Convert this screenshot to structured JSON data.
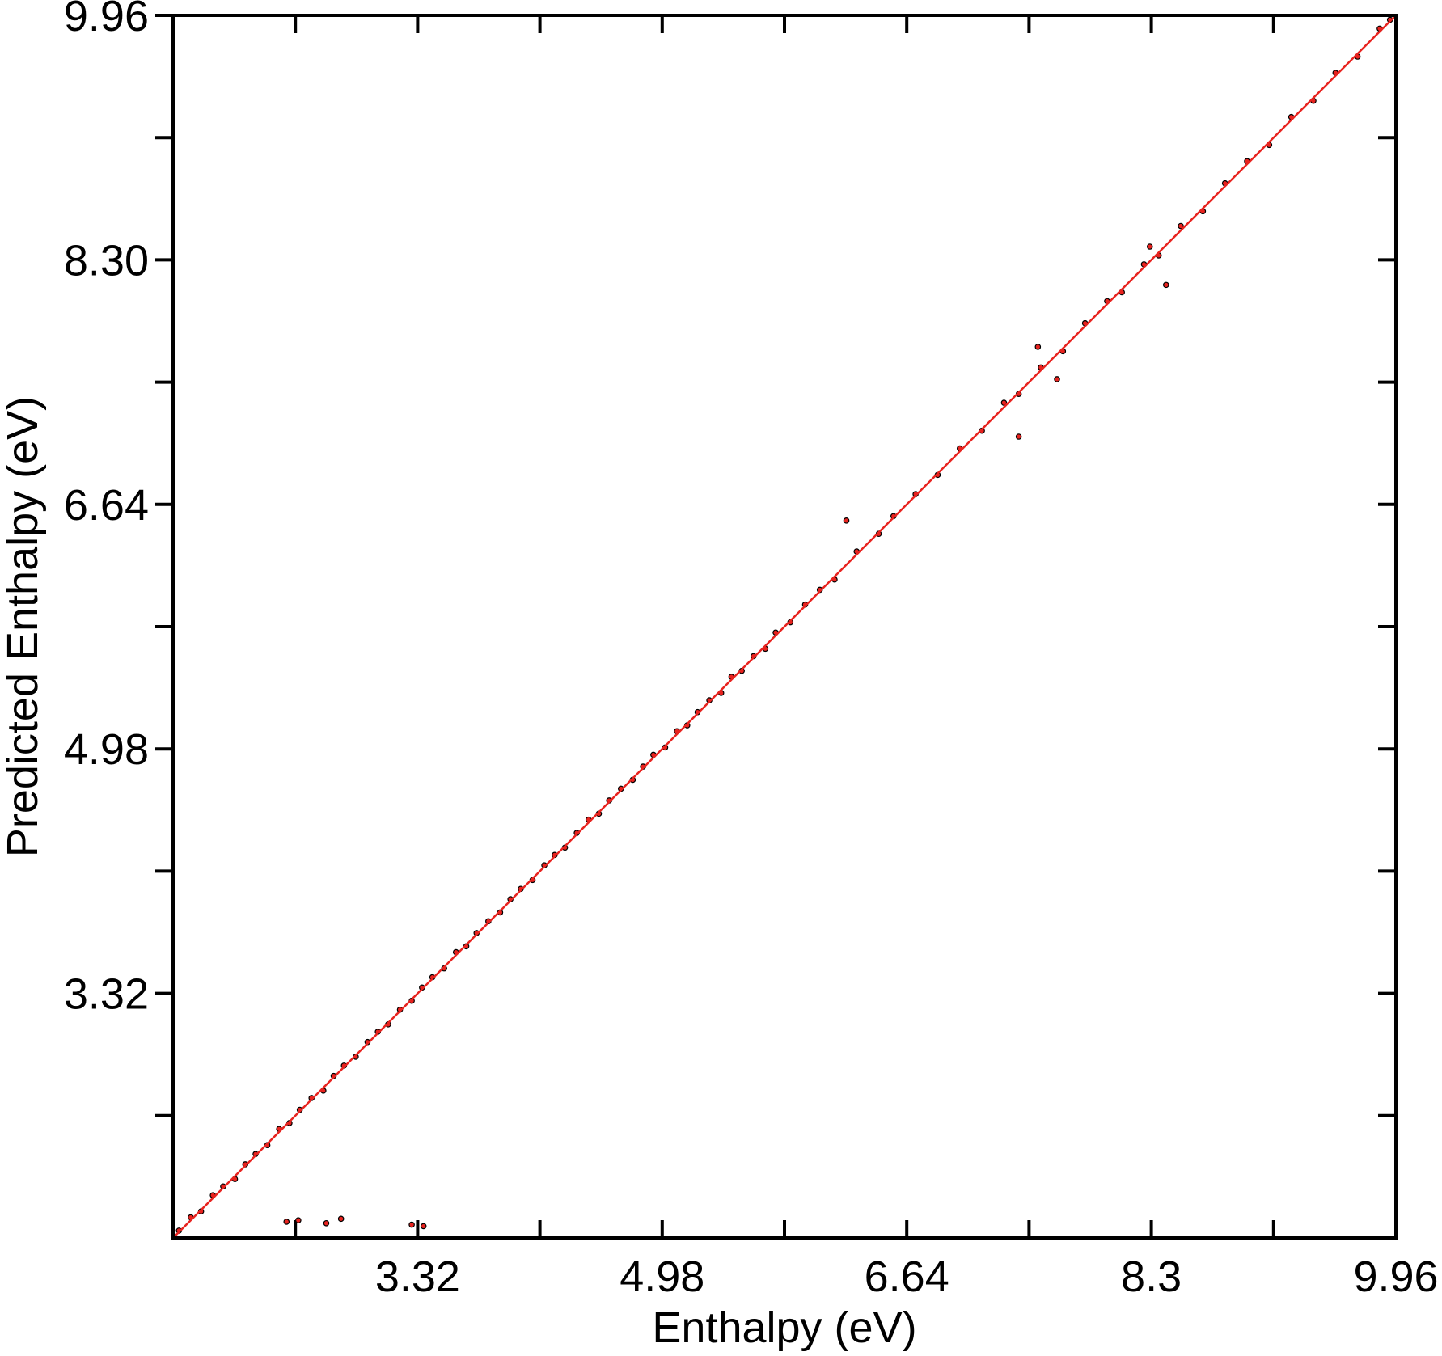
{
  "chart_data": {
    "type": "scatter",
    "xlabel": "Enthalpy (eV)",
    "ylabel": "Predicted Enthalpy (eV)",
    "xlim": [
      1.66,
      9.96
    ],
    "ylim": [
      1.66,
      9.96
    ],
    "xticks": [
      3.32,
      4.98,
      6.64,
      8.3,
      9.96
    ],
    "yticks": [
      3.32,
      4.98,
      6.64,
      {
        "value": 8.3,
        "label": "8.30"
      },
      9.96
    ],
    "xminor_ticks": [
      2.49,
      4.15,
      5.81,
      7.47,
      9.13
    ],
    "yminor_ticks": [
      2.49,
      4.15,
      5.81,
      7.47,
      9.13
    ],
    "series": [
      {
        "mode": "markers",
        "color": "#e8231f",
        "edgecolor": "#000000",
        "x": [
          1.7,
          1.78,
          1.85,
          1.93,
          2.0,
          2.08,
          2.15,
          2.22,
          2.3,
          2.38,
          2.45,
          2.52,
          2.6,
          2.68,
          2.75,
          2.82,
          2.9,
          2.98,
          3.05,
          3.12,
          3.2,
          3.28,
          3.35,
          3.42,
          3.5,
          3.58,
          3.65,
          3.72,
          3.8,
          3.88,
          3.95,
          4.02,
          4.1,
          4.18,
          4.25,
          4.32,
          4.4,
          4.48,
          4.55,
          4.62,
          4.7,
          4.78,
          4.85,
          4.92,
          5.0,
          5.08,
          5.15,
          5.22,
          5.3,
          5.38,
          5.45,
          5.52,
          5.6,
          5.68,
          5.75,
          5.85,
          5.95,
          6.05,
          6.15,
          6.3,
          6.45,
          6.55,
          6.7,
          6.85,
          7.0,
          7.15,
          7.3,
          7.4,
          7.55,
          7.7,
          7.85,
          8.0,
          8.1,
          8.25,
          8.35,
          8.5,
          8.65,
          8.8,
          8.95,
          9.1,
          9.25,
          9.4,
          9.55,
          9.7,
          9.85,
          9.92,
          2.43,
          2.51,
          2.7,
          2.8,
          3.28,
          3.36,
          6.23,
          7.4,
          7.53,
          7.66,
          8.29,
          8.4
        ],
        "values": [
          1.71,
          1.8,
          1.84,
          1.95,
          2.01,
          2.06,
          2.16,
          2.23,
          2.29,
          2.4,
          2.44,
          2.53,
          2.61,
          2.66,
          2.76,
          2.83,
          2.89,
          2.99,
          3.06,
          3.11,
          3.21,
          3.27,
          3.36,
          3.43,
          3.49,
          3.6,
          3.64,
          3.73,
          3.81,
          3.87,
          3.96,
          4.03,
          4.09,
          4.19,
          4.26,
          4.31,
          4.41,
          4.5,
          4.54,
          4.63,
          4.71,
          4.77,
          4.86,
          4.94,
          4.99,
          5.1,
          5.14,
          5.23,
          5.31,
          5.36,
          5.47,
          5.51,
          5.61,
          5.66,
          5.77,
          5.84,
          5.96,
          6.06,
          6.13,
          6.32,
          6.44,
          6.56,
          6.71,
          6.84,
          7.02,
          7.14,
          7.33,
          7.39,
          7.57,
          7.68,
          7.87,
          8.02,
          8.08,
          8.27,
          8.33,
          8.53,
          8.63,
          8.82,
          8.97,
          9.08,
          9.27,
          9.38,
          9.57,
          9.68,
          9.87,
          9.93,
          1.77,
          1.78,
          1.76,
          1.79,
          1.75,
          1.74,
          6.53,
          7.1,
          7.71,
          7.49,
          8.39,
          8.13
        ]
      },
      {
        "mode": "line",
        "color": "#e8231f",
        "x": [
          1.66,
          9.96
        ],
        "values": [
          1.66,
          9.96
        ]
      }
    ]
  }
}
